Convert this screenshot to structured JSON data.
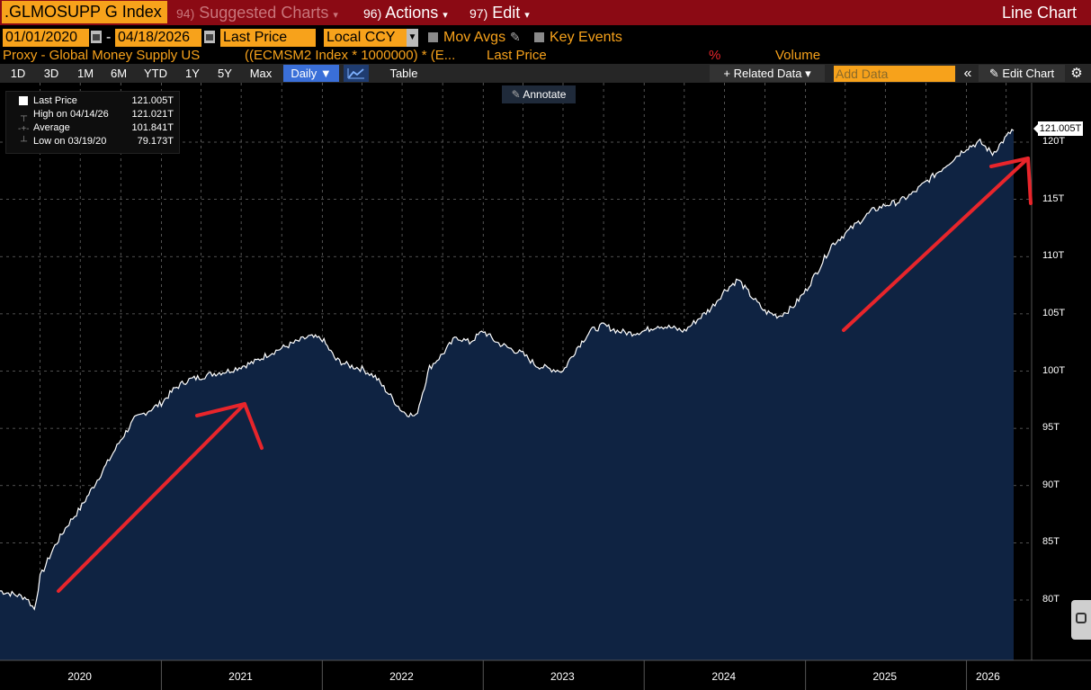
{
  "topbar": {
    "ticker": ".GLMOSUPP G Index",
    "suggested_num": "94)",
    "suggested_label": "Suggested Charts",
    "actions_num": "96)",
    "actions_label": "Actions",
    "edit_num": "97)",
    "edit_label": "Edit",
    "chart_type": "Line Chart"
  },
  "controls": {
    "start_date": "01/01/2020",
    "end_date": "04/18/2026",
    "field": "Last Price",
    "currency": "Local CCY",
    "mov_avgs": "Mov Avgs",
    "key_events": "Key Events"
  },
  "series_row": {
    "proxy_label": "Proxy - Global Money Supply US",
    "formula": "((ECMSM2 Index * 1000000) * (E...",
    "field": "Last Price",
    "pct_symbol": "%",
    "volume": "Volume"
  },
  "toolbar": {
    "ranges": [
      "1D",
      "3D",
      "1M",
      "6M",
      "YTD",
      "1Y",
      "5Y",
      "Max"
    ],
    "frequency": "Daily ▼",
    "table": "Table",
    "related_data": "+ Related Data ▾",
    "add_data_placeholder": "Add Data",
    "collapse": "«",
    "edit_chart": "✎ Edit Chart",
    "settings_icon": "gear-icon",
    "annotate": "Annotate"
  },
  "legend": {
    "rows": [
      {
        "label": "Last Price",
        "value": "121.005T"
      },
      {
        "label": "High on 04/14/26",
        "value": "121.021T"
      },
      {
        "label": "Average",
        "value": "101.841T"
      },
      {
        "label": "Low on 03/19/20",
        "value": "79.173T"
      }
    ]
  },
  "last_value_tag": "121.005T",
  "colors": {
    "topbar": "#8b0a14",
    "accent_orange": "#f7a21b",
    "area_fill": "#0f2342",
    "line": "#ffffff",
    "annotation_arrows": "#e8252b"
  },
  "chart_data": {
    "type": "area",
    "title": "",
    "xlabel": "",
    "ylabel": "",
    "ylim": [
      76,
      122
    ],
    "grid": true,
    "x_ticks": [
      "2020",
      "2021",
      "2022",
      "2023",
      "2024",
      "2025",
      "2026"
    ],
    "y_ticks": [
      80,
      85,
      90,
      95,
      100,
      105,
      110,
      115,
      120
    ],
    "y_tick_labels": [
      "80T",
      "85T",
      "90T",
      "95T",
      "100T",
      "105T",
      "110T",
      "115T",
      "120T"
    ],
    "series": [
      {
        "x": [
          "2020-01-01",
          "2020-02-01",
          "2020-03-01",
          "2020-03-19",
          "2020-04-01",
          "2020-05-01",
          "2020-06-01",
          "2020-07-01",
          "2020-08-01",
          "2020-09-01",
          "2020-10-01",
          "2020-11-01",
          "2020-12-01",
          "2021-01-01",
          "2021-02-01",
          "2021-03-01",
          "2021-04-01",
          "2021-05-01",
          "2021-06-01",
          "2021-07-01",
          "2021-08-01",
          "2021-09-01",
          "2021-10-01",
          "2021-11-01",
          "2021-12-01",
          "2022-01-01",
          "2022-02-01",
          "2022-03-01",
          "2022-04-01",
          "2022-05-01",
          "2022-06-01",
          "2022-07-01",
          "2022-08-01",
          "2022-09-01",
          "2022-10-01",
          "2022-11-01",
          "2022-12-01",
          "2023-01-01",
          "2023-02-01",
          "2023-03-01",
          "2023-04-01",
          "2023-05-01",
          "2023-06-01",
          "2023-07-01",
          "2023-08-01",
          "2023-09-01",
          "2023-10-01",
          "2023-11-01",
          "2023-12-01",
          "2024-01-01",
          "2024-02-01",
          "2024-03-01",
          "2024-04-01",
          "2024-05-01",
          "2024-06-01",
          "2024-07-01",
          "2024-08-01",
          "2024-09-01",
          "2024-10-01",
          "2024-11-01",
          "2024-12-01",
          "2025-01-01",
          "2025-02-01",
          "2025-03-01",
          "2025-04-01",
          "2025-05-01",
          "2025-06-01",
          "2025-07-01",
          "2025-08-01",
          "2025-09-01",
          "2025-10-01",
          "2025-11-01",
          "2025-12-01",
          "2026-01-01",
          "2026-02-01",
          "2026-03-01",
          "2026-04-14",
          "2026-04-18"
        ],
        "y": [
          80.8,
          80.5,
          80.2,
          79.2,
          82.0,
          84.5,
          86.5,
          88.0,
          90.0,
          92.0,
          94.0,
          95.8,
          96.5,
          97.2,
          98.5,
          99.2,
          99.5,
          99.8,
          100.0,
          100.4,
          100.8,
          101.5,
          102.0,
          102.5,
          103.0,
          102.8,
          101.0,
          100.5,
          100.2,
          99.5,
          98.0,
          96.5,
          96.0,
          100.3,
          101.5,
          103.0,
          102.5,
          103.5,
          102.5,
          102.0,
          101.5,
          100.5,
          100.2,
          100.0,
          102.0,
          103.5,
          104.0,
          103.5,
          103.3,
          103.5,
          104.0,
          103.8,
          103.5,
          104.5,
          105.5,
          107.0,
          108.0,
          106.5,
          105.2,
          104.8,
          105.5,
          107.0,
          109.0,
          111.0,
          112.0,
          113.0,
          114.0,
          114.5,
          114.8,
          115.5,
          116.5,
          117.5,
          118.5,
          119.5,
          120.0,
          119.0,
          121.021,
          121.005
        ]
      }
    ]
  }
}
